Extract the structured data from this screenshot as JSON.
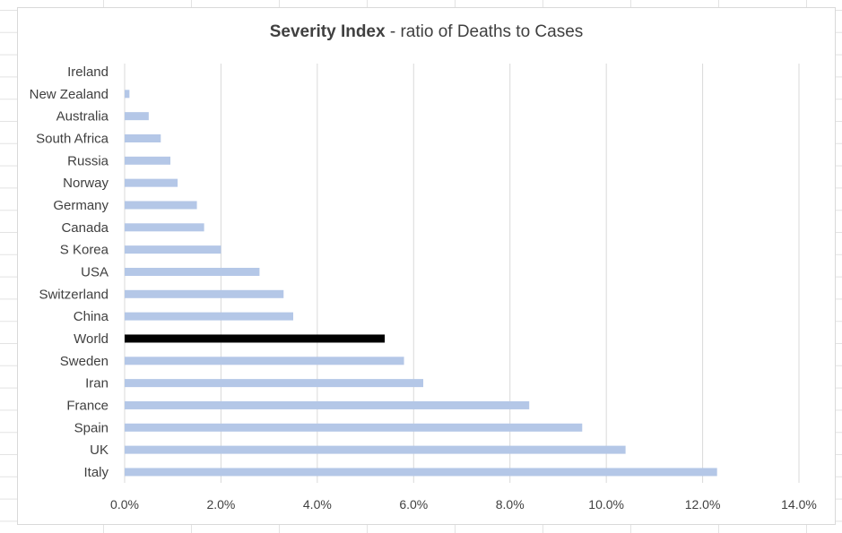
{
  "chart_data": {
    "type": "bar",
    "orientation": "horizontal",
    "title": "Severity Index",
    "subtitle": "- ratio of Deaths to Cases",
    "xlabel": "",
    "ylabel": "",
    "xlim": [
      0,
      14
    ],
    "x_ticks": [
      "0.0%",
      "2.0%",
      "4.0%",
      "6.0%",
      "8.0%",
      "10.0%",
      "12.0%",
      "14.0%"
    ],
    "grid": "vertical",
    "legend": "none",
    "categories": [
      "Ireland",
      "New Zealand",
      "Australia",
      "South Africa",
      "Russia",
      "Norway",
      "Germany",
      "Canada",
      "S Korea",
      "USA",
      "Switzerland",
      "China",
      "World",
      "Sweden",
      "Iran",
      "France",
      "Spain",
      "UK",
      "Italy"
    ],
    "values": [
      0.0,
      0.1,
      0.5,
      0.75,
      0.95,
      1.1,
      1.5,
      1.65,
      2.0,
      2.8,
      3.3,
      3.5,
      5.4,
      5.8,
      6.2,
      8.4,
      9.5,
      10.4,
      12.3
    ],
    "highlight": "World",
    "colors": {
      "bar": "#b4c7e7",
      "highlight": "#000000",
      "grid": "#d9d9d9",
      "text": "#404040"
    }
  }
}
